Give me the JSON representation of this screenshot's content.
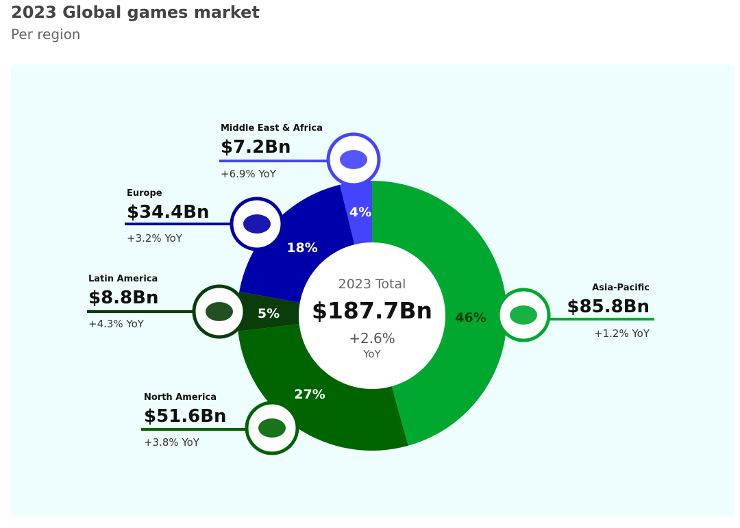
{
  "header": {
    "title": "2023 Global games market",
    "subtitle": "Per region"
  },
  "chart_data": {
    "type": "pie",
    "title": "2023 Global games market",
    "subtitle": "Per region",
    "center": {
      "label": "2023 Total",
      "value": "$187.7Bn",
      "growth": "+2.6%",
      "growth_suffix": "YoY"
    },
    "series": [
      {
        "name": "Asia-Pacific",
        "value": 85.8,
        "value_label": "$85.8Bn",
        "percent": 46,
        "percent_label": "46%",
        "yoy": "+1.2% YoY",
        "color": "#00a830",
        "icon": "asia-pacific-map-icon"
      },
      {
        "name": "North America",
        "value": 51.6,
        "value_label": "$51.6Bn",
        "percent": 27,
        "percent_label": "27%",
        "yoy": "+3.8% YoY",
        "color": "#006400",
        "icon": "north-america-map-icon"
      },
      {
        "name": "Latin America",
        "value": 8.8,
        "value_label": "$8.8Bn",
        "percent": 5,
        "percent_label": "5%",
        "yoy": "+4.3% YoY",
        "color": "#0a3d0a",
        "icon": "latin-america-map-icon"
      },
      {
        "name": "Europe",
        "value": 34.4,
        "value_label": "$34.4Bn",
        "percent": 18,
        "percent_label": "18%",
        "yoy": "+3.2% YoY",
        "color": "#0000aa",
        "icon": "europe-map-icon"
      },
      {
        "name": "Middle East & Africa",
        "value": 7.2,
        "value_label": "$7.2Bn",
        "percent": 4,
        "percent_label": "4%",
        "yoy": "+6.9% YoY",
        "color": "#4444ff",
        "icon": "africa-map-icon"
      }
    ]
  }
}
